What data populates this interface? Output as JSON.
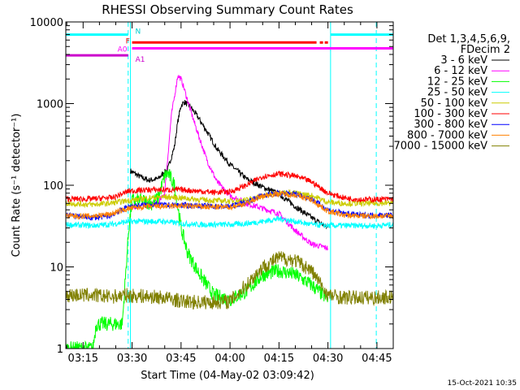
{
  "chart_data": {
    "type": "line",
    "title": "RHESSI Observing Summary Count Rates",
    "xlabel": "Start Time (04-May-02 03:09:42)",
    "ylabel": "Count Rate (s⁻¹ detector⁻¹)",
    "y_scale": "log",
    "ylim": [
      1,
      10000
    ],
    "xlim_minutes": [
      189.7,
      290
    ],
    "x_tick_labels": [
      "03:15",
      "03:30",
      "03:45",
      "04:00",
      "04:15",
      "04:30",
      "04:45"
    ],
    "x_tick_minutes": [
      195,
      210,
      225,
      240,
      255,
      270,
      285
    ],
    "y_tick_labels": [
      "1",
      "10",
      "100",
      "1000",
      "10000"
    ],
    "y_tick_values": [
      1,
      10,
      100,
      1000,
      10000
    ],
    "legend_header": [
      "Det 1,3,4,5,6,9,",
      "FDecim 2"
    ],
    "legend_position": "right",
    "footer_date": "15-Oct-2021 10:35",
    "flag_labels": {
      "N": "N",
      "F": "F",
      "A0": "A0",
      "A1": "A1"
    },
    "flags": [
      {
        "name": "N",
        "color": "#00ffff",
        "segments": [
          [
            189.7,
            208.8
          ],
          [
            270.8,
            290
          ]
        ],
        "level": 7000
      },
      {
        "name": "F",
        "color": "#ff0000",
        "segments": [
          [
            210,
            266.5
          ],
          [
            267.5,
            268.5
          ],
          [
            269,
            270
          ]
        ],
        "level": 5600
      },
      {
        "name": "A0",
        "color": "#ff00ff",
        "segments": [
          [
            210,
            290
          ]
        ],
        "level": 4750
      },
      {
        "name": "A1",
        "color": "#cc00cc",
        "segments": [
          [
            189.7,
            208.8
          ]
        ],
        "level": 3900
      }
    ],
    "vertical_lines": [
      {
        "minute": 208.8,
        "color": "#00ffff",
        "dashed": true
      },
      {
        "minute": 209.5,
        "color": "#00ffff",
        "dashed": false
      },
      {
        "minute": 270.8,
        "color": "#00ffff",
        "dashed": false
      },
      {
        "minute": 284.8,
        "color": "#00ffff",
        "dashed": true
      }
    ],
    "series": [
      {
        "name": "3 - 6 keV",
        "color": "#000000",
        "points": [
          [
            209.5,
            150
          ],
          [
            212,
            130
          ],
          [
            215,
            115
          ],
          [
            218,
            120
          ],
          [
            221,
            160
          ],
          [
            223,
            300
          ],
          [
            224,
            600
          ],
          [
            225,
            950
          ],
          [
            226,
            1050
          ],
          [
            228,
            900
          ],
          [
            230,
            700
          ],
          [
            233,
            450
          ],
          [
            236,
            280
          ],
          [
            240,
            180
          ],
          [
            245,
            120
          ],
          [
            250,
            95
          ],
          [
            255,
            78
          ],
          [
            260,
            55
          ],
          [
            265,
            40
          ],
          [
            270,
            30
          ]
        ]
      },
      {
        "name": "6 - 12 keV",
        "color": "#ff00ff",
        "points": [
          [
            209.5,
            55
          ],
          [
            212,
            55
          ],
          [
            215,
            58
          ],
          [
            218,
            60
          ],
          [
            220,
            80
          ],
          [
            222,
            700
          ],
          [
            224,
            2200
          ],
          [
            225,
            2000
          ],
          [
            226,
            1500
          ],
          [
            228,
            800
          ],
          [
            230,
            450
          ],
          [
            233,
            200
          ],
          [
            236,
            110
          ],
          [
            240,
            75
          ],
          [
            245,
            60
          ],
          [
            250,
            52
          ],
          [
            255,
            45
          ],
          [
            260,
            28
          ],
          [
            265,
            19
          ],
          [
            270,
            17
          ]
        ]
      },
      {
        "name": "12 - 25 keV",
        "color": "#00ff00",
        "points": [
          [
            189.7,
            1
          ],
          [
            198,
            1
          ],
          [
            199,
            2
          ],
          [
            202,
            2
          ],
          [
            205,
            2
          ],
          [
            207,
            2
          ],
          [
            209,
            30
          ],
          [
            210,
            65
          ],
          [
            213,
            65
          ],
          [
            216,
            60
          ],
          [
            218,
            70
          ],
          [
            220,
            130
          ],
          [
            221,
            140
          ],
          [
            223,
            100
          ],
          [
            225,
            30
          ],
          [
            227,
            15
          ],
          [
            230,
            9
          ],
          [
            235,
            4.5
          ],
          [
            240,
            4
          ],
          [
            245,
            5
          ],
          [
            250,
            8
          ],
          [
            255,
            9
          ],
          [
            260,
            8
          ],
          [
            265,
            6
          ],
          [
            270,
            4
          ]
        ]
      },
      {
        "name": "25 - 50 keV",
        "color": "#00ffff",
        "points": [
          [
            189.7,
            33
          ],
          [
            198,
            32
          ],
          [
            203,
            33
          ],
          [
            209,
            36
          ],
          [
            215,
            36
          ],
          [
            220,
            36
          ],
          [
            225,
            34
          ],
          [
            230,
            33
          ],
          [
            235,
            33
          ],
          [
            240,
            33
          ],
          [
            245,
            34
          ],
          [
            250,
            36
          ],
          [
            255,
            39
          ],
          [
            260,
            36
          ],
          [
            265,
            33
          ],
          [
            270,
            32
          ],
          [
            275,
            32
          ],
          [
            280,
            32
          ],
          [
            285,
            32
          ],
          [
            290,
            33
          ]
        ]
      },
      {
        "name": "50 - 100 keV",
        "color": "#cccc00",
        "points": [
          [
            189.7,
            60
          ],
          [
            198,
            58
          ],
          [
            203,
            60
          ],
          [
            209,
            65
          ],
          [
            215,
            70
          ],
          [
            220,
            72
          ],
          [
            225,
            70
          ],
          [
            230,
            67
          ],
          [
            235,
            65
          ],
          [
            240,
            64
          ],
          [
            245,
            66
          ],
          [
            250,
            74
          ],
          [
            255,
            82
          ],
          [
            260,
            80
          ],
          [
            265,
            75
          ],
          [
            270,
            62
          ],
          [
            275,
            60
          ],
          [
            280,
            60
          ],
          [
            285,
            60
          ],
          [
            290,
            61
          ]
        ]
      },
      {
        "name": "100 - 300 keV",
        "color": "#ff0000",
        "points": [
          [
            189.7,
            68
          ],
          [
            198,
            68
          ],
          [
            202,
            70
          ],
          [
            204,
            70
          ],
          [
            209,
            85
          ],
          [
            215,
            88
          ],
          [
            220,
            88
          ],
          [
            225,
            88
          ],
          [
            230,
            85
          ],
          [
            235,
            82
          ],
          [
            240,
            83
          ],
          [
            245,
            100
          ],
          [
            250,
            128
          ],
          [
            255,
            138
          ],
          [
            260,
            130
          ],
          [
            265,
            110
          ],
          [
            270,
            80
          ],
          [
            275,
            70
          ],
          [
            280,
            67
          ],
          [
            285,
            67
          ],
          [
            290,
            68
          ]
        ]
      },
      {
        "name": "300 - 800 keV",
        "color": "#0000ff",
        "points": [
          [
            189.7,
            43
          ],
          [
            198,
            40
          ],
          [
            203,
            42
          ],
          [
            209,
            55
          ],
          [
            215,
            58
          ],
          [
            220,
            57
          ],
          [
            225,
            57
          ],
          [
            230,
            56
          ],
          [
            235,
            55
          ],
          [
            240,
            55
          ],
          [
            245,
            62
          ],
          [
            250,
            76
          ],
          [
            255,
            80
          ],
          [
            260,
            78
          ],
          [
            265,
            68
          ],
          [
            270,
            50
          ],
          [
            275,
            45
          ],
          [
            280,
            43
          ],
          [
            285,
            43
          ],
          [
            290,
            43
          ]
        ]
      },
      {
        "name": "800 - 7000 keV",
        "color": "#ff8000",
        "points": [
          [
            189.7,
            42
          ],
          [
            198,
            42
          ],
          [
            203,
            44
          ],
          [
            209,
            52
          ],
          [
            215,
            55
          ],
          [
            220,
            55
          ],
          [
            225,
            56
          ],
          [
            230,
            55
          ],
          [
            235,
            54
          ],
          [
            240,
            54
          ],
          [
            245,
            60
          ],
          [
            250,
            74
          ],
          [
            255,
            79
          ],
          [
            260,
            76
          ],
          [
            265,
            66
          ],
          [
            270,
            48
          ],
          [
            275,
            43
          ],
          [
            280,
            42
          ],
          [
            285,
            42
          ],
          [
            290,
            42
          ]
        ]
      },
      {
        "name": "7000 - 15000 keV",
        "color": "#808000",
        "points": [
          [
            189.7,
            4.5
          ],
          [
            198,
            4.5
          ],
          [
            203,
            4.3
          ],
          [
            208,
            4.5
          ],
          [
            212,
            4.4
          ],
          [
            216,
            4.3
          ],
          [
            220,
            4.2
          ],
          [
            225,
            3.8
          ],
          [
            230,
            3.7
          ],
          [
            235,
            3.7
          ],
          [
            240,
            3.8
          ],
          [
            245,
            6
          ],
          [
            250,
            10
          ],
          [
            255,
            13
          ],
          [
            260,
            12
          ],
          [
            265,
            9
          ],
          [
            270,
            4.5
          ],
          [
            275,
            4.2
          ],
          [
            280,
            4.2
          ],
          [
            285,
            4.2
          ],
          [
            290,
            4.3
          ]
        ]
      }
    ]
  }
}
